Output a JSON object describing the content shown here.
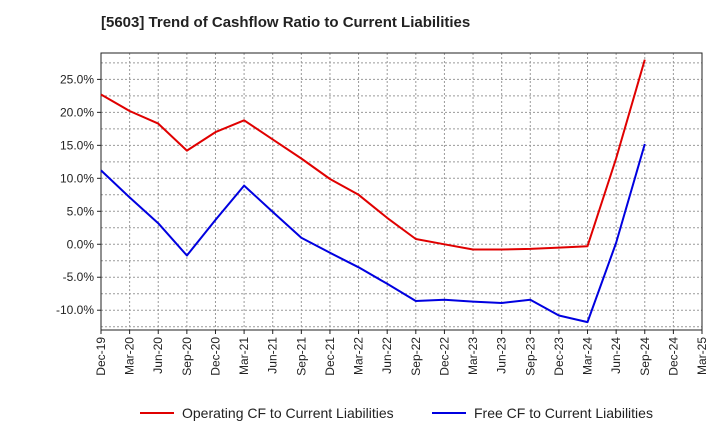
{
  "chart_data": {
    "type": "line",
    "title": "[5603]  Trend of Cashflow Ratio to Current Liabilities",
    "xlabel": "",
    "ylabel": "",
    "x": [
      "Dec-19",
      "Mar-20",
      "Jun-20",
      "Sep-20",
      "Dec-20",
      "Mar-21",
      "Jun-21",
      "Sep-21",
      "Dec-21",
      "Mar-22",
      "Jun-22",
      "Sep-22",
      "Dec-22",
      "Mar-23",
      "Jun-23",
      "Sep-23",
      "Dec-23",
      "Mar-24",
      "Jun-24",
      "Sep-24",
      "Dec-24",
      "Mar-25"
    ],
    "ylim": [
      -13,
      29
    ],
    "yticks": [
      -10,
      -5,
      0,
      5,
      10,
      15,
      20,
      25
    ],
    "ytick_labels": [
      "-10.0%",
      "-5.0%",
      "0.0%",
      "5.0%",
      "10.0%",
      "15.0%",
      "20.0%",
      "25.0%"
    ],
    "grid": true,
    "legend_position": "bottom",
    "series": [
      {
        "name": "Operating CF to Current Liabilities",
        "color": "#e00000",
        "values": [
          22.7,
          20.2,
          18.3,
          14.2,
          17.0,
          18.8,
          15.9,
          13.0,
          9.9,
          7.5,
          4.0,
          0.8,
          0.0,
          -0.8,
          -0.8,
          -0.7,
          -0.5,
          -0.3,
          13.0,
          28.0,
          null,
          null
        ]
      },
      {
        "name": "Free CF to Current Liabilities",
        "color": "#0000e0",
        "values": [
          11.2,
          7.1,
          3.2,
          -1.7,
          3.7,
          8.9,
          4.9,
          1.0,
          -1.3,
          -3.5,
          -6.0,
          -8.6,
          -8.4,
          -8.7,
          -8.9,
          -8.4,
          -10.8,
          -11.8,
          0.2,
          15.2,
          null,
          null
        ]
      }
    ]
  }
}
